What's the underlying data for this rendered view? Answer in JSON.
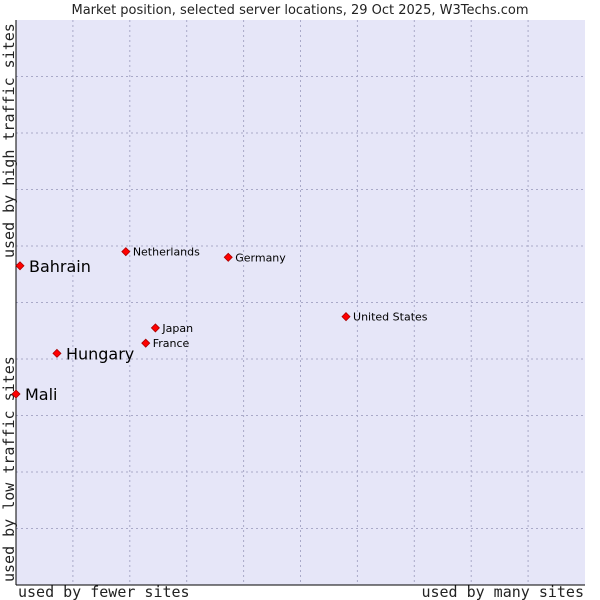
{
  "chart_data": {
    "type": "scatter",
    "title": "Market position, selected server locations, 29 Oct 2025, W3Techs.com",
    "xlabel_left": "used by fewer sites",
    "xlabel_right": "used by many sites",
    "ylabel_bottom": "used by low traffic sites",
    "ylabel_top": "used by high traffic sites",
    "xlim": [
      0,
      100
    ],
    "ylim": [
      0,
      100
    ],
    "grid": true,
    "points": [
      {
        "label": "Netherlands",
        "x": 19.3,
        "y": 59.0,
        "highlight": false
      },
      {
        "label": "Germany",
        "x": 37.3,
        "y": 58.0,
        "highlight": false
      },
      {
        "label": "Bahrain",
        "x": 0.7,
        "y": 56.5,
        "highlight": true
      },
      {
        "label": "United States",
        "x": 58.0,
        "y": 47.5,
        "highlight": false
      },
      {
        "label": "Japan",
        "x": 24.5,
        "y": 45.5,
        "highlight": false
      },
      {
        "label": "France",
        "x": 22.8,
        "y": 42.8,
        "highlight": false
      },
      {
        "label": "Hungary",
        "x": 7.2,
        "y": 41.0,
        "highlight": true
      },
      {
        "label": "Mali",
        "x": 0.0,
        "y": 33.8,
        "highlight": true
      }
    ],
    "colors": {
      "plot_bg": "#e6e6f8",
      "grid": "#a9a9c8",
      "axis": "#000000",
      "marker": "#ff0000",
      "marker_stroke": "#aa0000"
    }
  }
}
